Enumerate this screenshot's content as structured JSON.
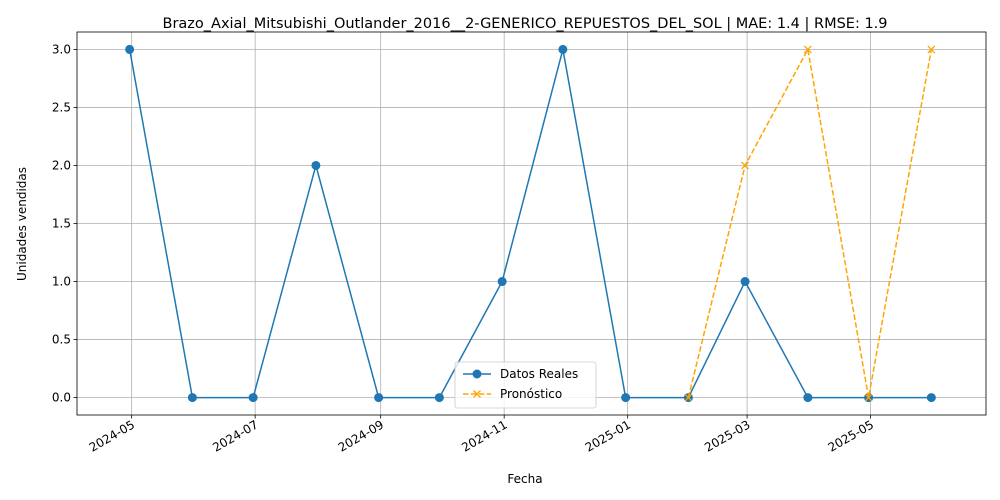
{
  "chart_data": {
    "type": "line",
    "title": "Brazo_Axial_Mitsubishi_Outlander_2016__2-GENERICO_REPUESTOS_DEL_SOL | MAE: 1.4 | RMSE: 1.9",
    "xlabel": "Fecha",
    "ylabel": "Unidades vendidas",
    "ylim": [
      -0.15,
      3.15
    ],
    "xlim": [
      "2024-04-04",
      "2025-06-27"
    ],
    "grid": true,
    "legend_position": "lower-center",
    "x_ticks": [
      "2024-05",
      "2024-07",
      "2024-09",
      "2024-11",
      "2025-01",
      "2025-03",
      "2025-05"
    ],
    "y_ticks": [
      "0.0",
      "0.5",
      "1.0",
      "1.5",
      "2.0",
      "2.5",
      "3.0"
    ],
    "series": [
      {
        "name": "Datos Reales",
        "color": "#1f77b4",
        "marker": "circle",
        "line_style": "solid",
        "x": [
          "2024-04-30",
          "2024-05-31",
          "2024-06-30",
          "2024-07-31",
          "2024-08-31",
          "2024-09-30",
          "2024-10-31",
          "2024-11-30",
          "2024-12-31",
          "2025-01-31",
          "2025-02-28",
          "2025-03-31",
          "2025-04-30",
          "2025-05-31"
        ],
        "values": [
          3,
          0,
          0,
          2,
          0,
          0,
          1,
          3,
          0,
          0,
          1,
          0,
          0,
          0
        ]
      },
      {
        "name": "Pronóstico",
        "color": "#ffa500",
        "marker": "x",
        "line_style": "dashed",
        "x": [
          "2025-01-31",
          "2025-02-28",
          "2025-03-31",
          "2025-04-30",
          "2025-05-31"
        ],
        "values": [
          0,
          2,
          3,
          0,
          3
        ]
      }
    ]
  }
}
